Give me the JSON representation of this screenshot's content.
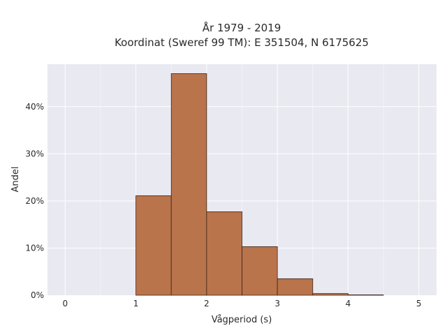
{
  "chart_data": {
    "type": "bar",
    "title_line1": "År 1979 - 2019",
    "title_line2": "Koordinat (Sweref 99 TM): E 351504, N 6175625",
    "xlabel": "Vågperiod (s)",
    "ylabel": "Andel",
    "xlim": [
      -0.25,
      5.25
    ],
    "ylim": [
      0,
      49
    ],
    "x_ticks": [
      0,
      1,
      2,
      3,
      4,
      5
    ],
    "x_tick_labels": [
      "0",
      "1",
      "2",
      "3",
      "4",
      "5"
    ],
    "y_ticks": [
      0,
      10,
      20,
      30,
      40
    ],
    "y_tick_labels": [
      "0%",
      "10%",
      "20%",
      "30%",
      "40%"
    ],
    "bin_width": 0.5,
    "bins": [
      {
        "x0": 1.0,
        "x1": 1.5,
        "value": 21.1
      },
      {
        "x0": 1.5,
        "x1": 2.0,
        "value": 47.0
      },
      {
        "x0": 2.0,
        "x1": 2.5,
        "value": 17.7
      },
      {
        "x0": 2.5,
        "x1": 3.0,
        "value": 10.3
      },
      {
        "x0": 3.0,
        "x1": 3.5,
        "value": 3.5
      },
      {
        "x0": 3.5,
        "x1": 4.0,
        "value": 0.35
      },
      {
        "x0": 4.0,
        "x1": 4.5,
        "value": 0.08
      }
    ],
    "grid": true,
    "colors": {
      "bar_fill": "#b9744c",
      "bar_stroke": "#3a2418",
      "plot_background": "#e9e9f1",
      "grid_major": "#ffffff"
    }
  }
}
